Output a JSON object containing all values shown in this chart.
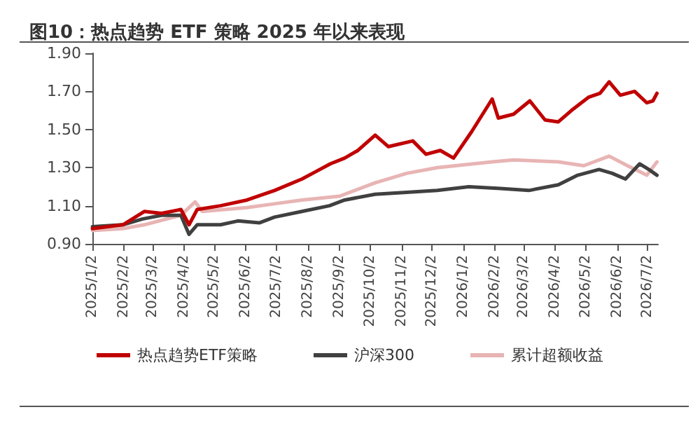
{
  "chart_data": {
    "type": "line",
    "title": "图10：热点趋势 ETF 策略 2025 年以来表现",
    "xlim": [
      "2025-01-02",
      "2026-07-12"
    ],
    "xticks": [
      {
        "value": "2025-01-02",
        "label": "2025/1/2"
      },
      {
        "value": "2025-02-02",
        "label": "2025/2/2"
      },
      {
        "value": "2025-03-02",
        "label": "2025/3/2"
      },
      {
        "value": "2025-04-02",
        "label": "2025/4/2"
      },
      {
        "value": "2025-05-02",
        "label": "2025/5/2"
      },
      {
        "value": "2025-06-02",
        "label": "2025/6/2"
      },
      {
        "value": "2025-07-02",
        "label": "2025/7/2"
      },
      {
        "value": "2025-08-02",
        "label": "2025/8/2"
      },
      {
        "value": "2025-09-02",
        "label": "2025/9/2"
      },
      {
        "value": "2025-10-02",
        "label": "2025/10/2"
      },
      {
        "value": "2025-11-02",
        "label": "2025/11/2"
      },
      {
        "value": "2025-12-02",
        "label": "2025/12/2"
      },
      {
        "value": "2026-01-02",
        "label": "2026/1/2"
      },
      {
        "value": "2026-02-02",
        "label": "2026/2/2"
      },
      {
        "value": "2026-03-02",
        "label": "2026/3/2"
      },
      {
        "value": "2026-04-02",
        "label": "2026/4/2"
      },
      {
        "value": "2026-05-02",
        "label": "2026/5/2"
      },
      {
        "value": "2026-06-02",
        "label": "2026/6/2"
      },
      {
        "value": "2026-07-02",
        "label": "2026/7/2"
      }
    ],
    "ylim": [
      0.9,
      1.9
    ],
    "yticks": [
      {
        "value": 0.9,
        "label": "0.90"
      },
      {
        "value": 1.1,
        "label": "1.10"
      },
      {
        "value": 1.3,
        "label": "1.30"
      },
      {
        "value": 1.5,
        "label": "1.50"
      },
      {
        "value": 1.7,
        "label": "1.70"
      },
      {
        "value": 1.9,
        "label": "1.90"
      }
    ],
    "grid": false,
    "legend": "bottom",
    "marker": "none",
    "line_style": "solid",
    "series": [
      {
        "name": "热点趋势ETF策略",
        "color": "#c00000",
        "x": [
          "2025-01-02",
          "2025-02-01",
          "2025-02-22",
          "2025-03-11",
          "2025-03-30",
          "2025-04-07",
          "2025-04-15",
          "2025-05-08",
          "2025-06-03",
          "2025-06-30",
          "2025-07-27",
          "2025-08-10",
          "2025-08-24",
          "2025-09-07",
          "2025-09-20",
          "2025-10-07",
          "2025-10-20",
          "2025-11-13",
          "2025-11-26",
          "2025-12-10",
          "2025-12-23",
          "2026-01-10",
          "2026-01-30",
          "2026-02-05",
          "2026-02-20",
          "2026-03-08",
          "2026-03-23",
          "2026-04-05",
          "2026-04-18",
          "2026-05-05",
          "2026-05-16",
          "2026-05-25",
          "2026-06-05",
          "2026-06-19",
          "2026-07-01",
          "2026-07-07",
          "2026-07-11"
        ],
        "values": [
          0.98,
          1.0,
          1.07,
          1.06,
          1.08,
          1.0,
          1.08,
          1.1,
          1.13,
          1.18,
          1.24,
          1.28,
          1.32,
          1.35,
          1.39,
          1.47,
          1.41,
          1.44,
          1.37,
          1.39,
          1.35,
          1.49,
          1.66,
          1.56,
          1.58,
          1.65,
          1.55,
          1.54,
          1.6,
          1.67,
          1.69,
          1.75,
          1.68,
          1.7,
          1.64,
          1.65,
          1.69
        ]
      },
      {
        "name": "沪深300",
        "color": "#404040",
        "x": [
          "2025-01-02",
          "2025-02-01",
          "2025-02-20",
          "2025-03-11",
          "2025-03-30",
          "2025-04-07",
          "2025-04-15",
          "2025-05-08",
          "2025-05-25",
          "2025-06-15",
          "2025-06-30",
          "2025-07-27",
          "2025-08-23",
          "2025-09-07",
          "2025-10-07",
          "2025-11-07",
          "2025-12-07",
          "2026-01-07",
          "2026-02-07",
          "2026-03-07",
          "2026-04-05",
          "2026-04-24",
          "2026-05-15",
          "2026-05-28",
          "2026-06-10",
          "2026-06-24",
          "2026-07-03",
          "2026-07-11"
        ],
        "values": [
          0.99,
          1.0,
          1.03,
          1.05,
          1.05,
          0.95,
          1.0,
          1.0,
          1.02,
          1.01,
          1.04,
          1.07,
          1.1,
          1.13,
          1.16,
          1.17,
          1.18,
          1.2,
          1.19,
          1.18,
          1.21,
          1.26,
          1.29,
          1.27,
          1.24,
          1.32,
          1.29,
          1.26
        ]
      },
      {
        "name": "累计超额收益",
        "color": "#e8b4b4",
        "x": [
          "2025-01-02",
          "2025-02-01",
          "2025-02-22",
          "2025-03-30",
          "2025-04-13",
          "2025-04-20",
          "2025-06-03",
          "2025-06-30",
          "2025-07-27",
          "2025-09-02",
          "2025-10-07",
          "2025-11-07",
          "2025-12-07",
          "2026-01-30",
          "2026-02-20",
          "2026-04-05",
          "2026-04-30",
          "2026-05-25",
          "2026-06-12",
          "2026-07-01",
          "2026-07-11"
        ],
        "values": [
          0.97,
          0.98,
          1.0,
          1.05,
          1.12,
          1.07,
          1.09,
          1.11,
          1.13,
          1.15,
          1.22,
          1.27,
          1.3,
          1.33,
          1.34,
          1.33,
          1.31,
          1.36,
          1.31,
          1.26,
          1.33
        ]
      }
    ]
  }
}
